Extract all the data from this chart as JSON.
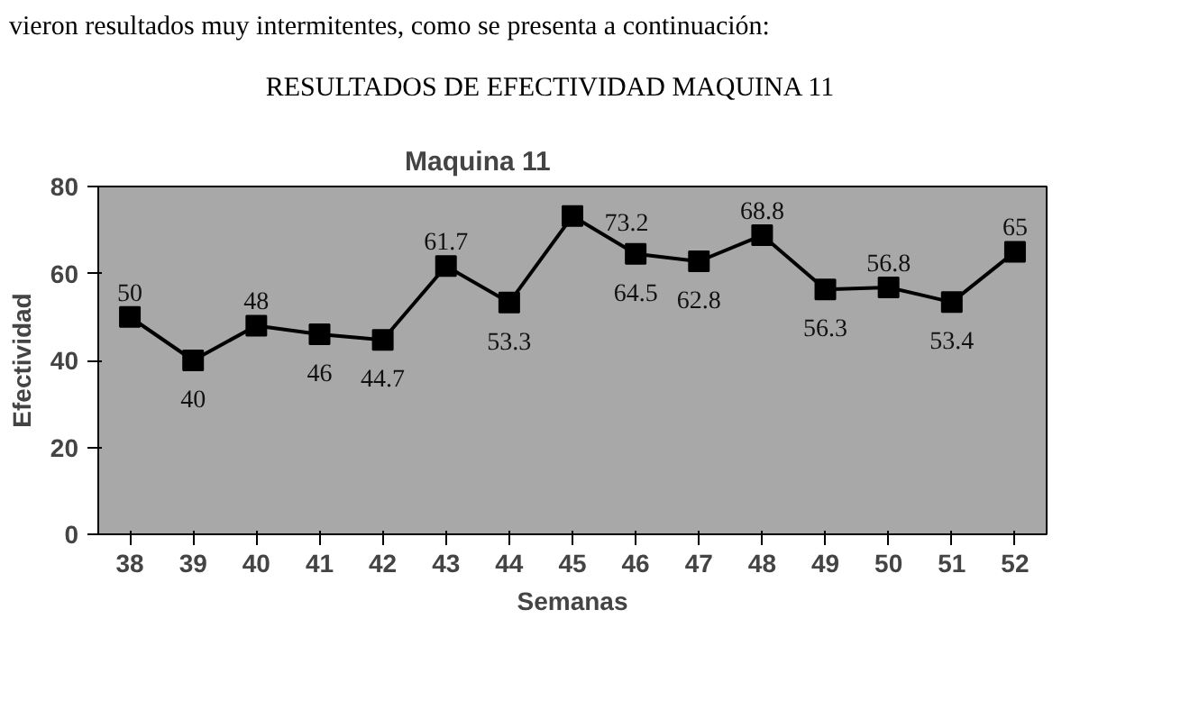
{
  "chart_data": {
    "type": "line",
    "title": "Maquina 11",
    "xlabel": "Semanas",
    "ylabel": "Efectividad",
    "annotations": [
      "vieron resultados muy intermitentes, como se presenta a continuación:",
      "RESULTADOS DE EFECTIVIDAD MAQUINA 11"
    ],
    "categories": [
      "38",
      "39",
      "40",
      "41",
      "42",
      "43",
      "44",
      "45",
      "46",
      "47",
      "48",
      "49",
      "50",
      "51",
      "52"
    ],
    "series": [
      {
        "color": "#000000",
        "values": [
          50,
          40,
          48,
          46,
          44.7,
          61.7,
          53.3,
          73.2,
          64.5,
          62.8,
          68.8,
          56.3,
          56.8,
          53.4,
          65
        ]
      }
    ],
    "ylim": [
      0,
      80
    ],
    "yticks": [
      0,
      20,
      40,
      60,
      80
    ],
    "grid": false,
    "marker": "square",
    "line_style": "solid",
    "data_labels": true
  }
}
